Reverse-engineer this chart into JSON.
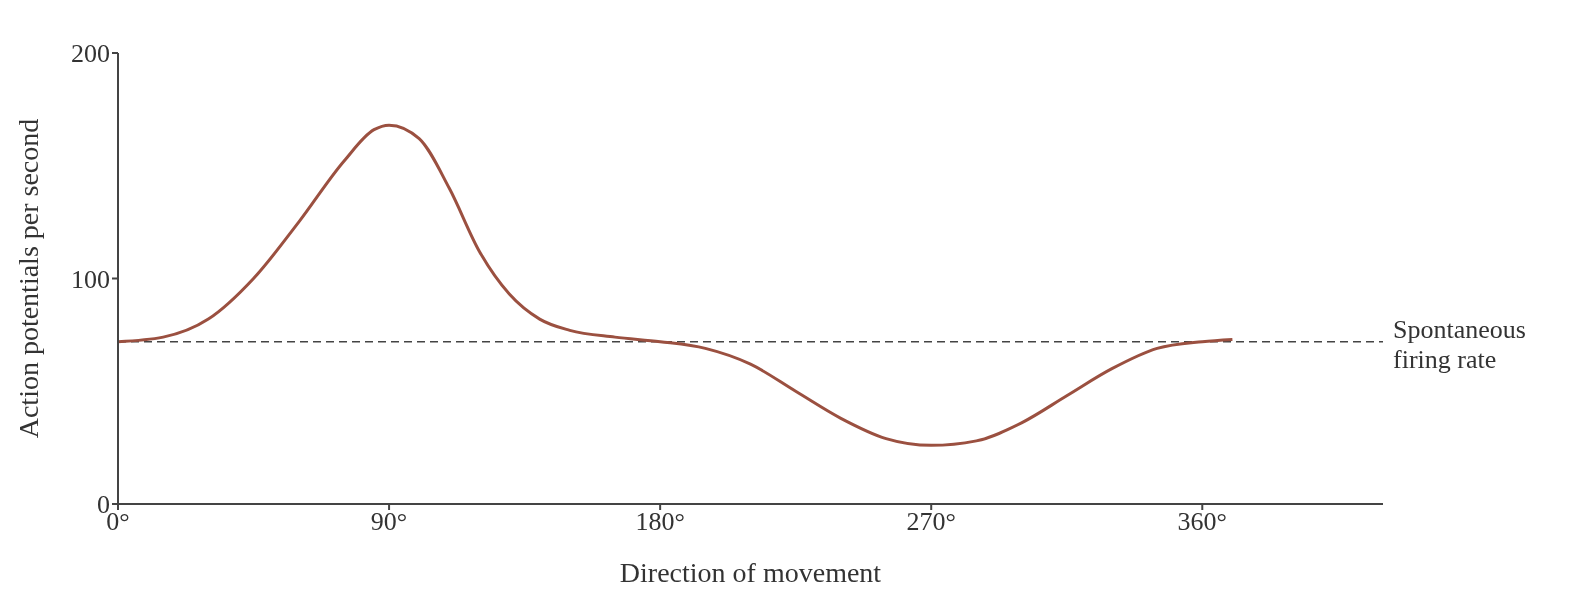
{
  "chart_data": {
    "type": "line",
    "xlabel": "Direction of movement",
    "ylabel": "Action potentials per second",
    "x": [
      0,
      15,
      30,
      45,
      60,
      75,
      85,
      90,
      100,
      110,
      120,
      130,
      140,
      150,
      165,
      180,
      195,
      210,
      225,
      240,
      255,
      270,
      285,
      300,
      315,
      330,
      345,
      360,
      370
    ],
    "series": [
      {
        "color": "#9b5040",
        "values": [
          72,
          74,
          82,
          100,
          125,
          152,
          166,
          168,
          162,
          140,
          112,
          93,
          82,
          77,
          74,
          72,
          69,
          62,
          50,
          38,
          29,
          26,
          28,
          36,
          48,
          60,
          69,
          72,
          73
        ]
      }
    ],
    "xlim": [
      0,
      420
    ],
    "xticks": [
      {
        "value": 0,
        "label": "0°"
      },
      {
        "value": 90,
        "label": "90°"
      },
      {
        "value": 180,
        "label": "180°"
      },
      {
        "value": 270,
        "label": "270°"
      },
      {
        "value": 360,
        "label": "360°"
      }
    ],
    "ylim": [
      0,
      200
    ],
    "yticks": [
      0,
      100,
      200
    ],
    "grid": false,
    "legend": false,
    "ref_lines": [
      {
        "axis": "y",
        "value": 72,
        "label": "Spontaneous firing rate",
        "line_style": "dashed",
        "color": "#444444"
      }
    ]
  }
}
